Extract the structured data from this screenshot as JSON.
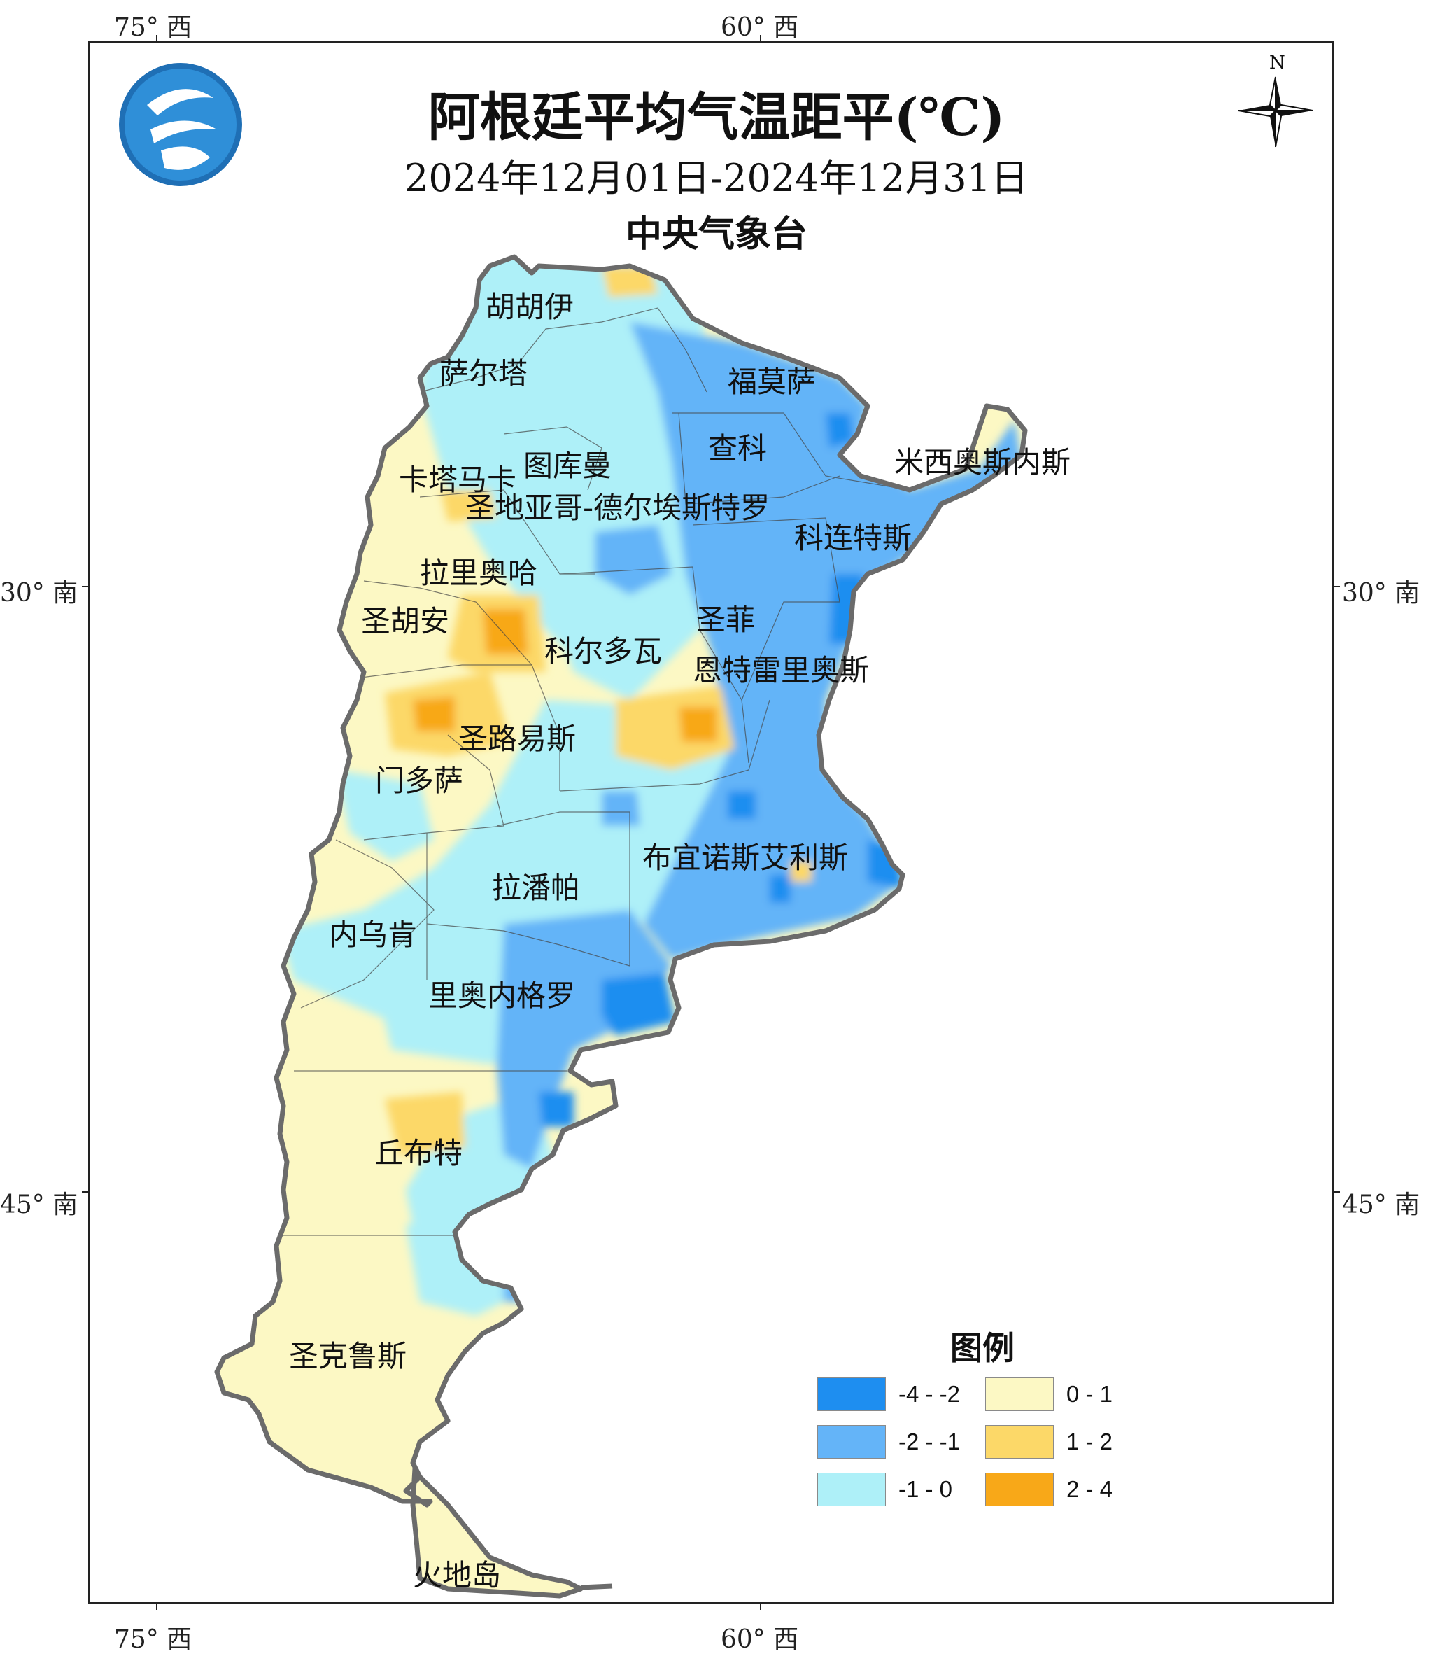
{
  "title": "阿根廷平均气温距平(℃)",
  "date_range": "2024年12月01日-2024年12月31日",
  "agency": "中央气象台",
  "north_label": "N",
  "logo_icon": "cma-logo-icon",
  "axes": {
    "top": [
      "75° 西",
      "60° 西"
    ],
    "bottom": [
      "75° 西",
      "60° 西"
    ],
    "left": [
      "30° 南",
      "45° 南"
    ],
    "right": [
      "30° 南",
      "45° 南"
    ]
  },
  "provinces": {
    "jujuy": "胡胡伊",
    "salta": "萨尔塔",
    "formosa": "福莫萨",
    "chaco": "查科",
    "misiones": "米西奥斯内斯",
    "tucuman": "图库曼",
    "catamarca": "卡塔马卡",
    "santiago": "圣地亚哥-德尔埃斯特罗",
    "corrientes": "科连特斯",
    "la_rioja": "拉里奥哈",
    "san_juan": "圣胡安",
    "cordoba": "科尔多瓦",
    "santa_fe": "圣菲",
    "entre_rios": "恩特雷里奥斯",
    "san_luis": "圣路易斯",
    "mendoza": "门多萨",
    "buenos_aires": "布宜诺斯艾利斯",
    "la_pampa": "拉潘帕",
    "neuquen": "内乌肯",
    "rio_negro": "里奥内格罗",
    "chubut": "丘布特",
    "santa_cruz": "圣克鲁斯",
    "tierra_del_fuego": "火地岛"
  },
  "legend": {
    "title": "图例",
    "items": [
      {
        "label": "-4 - -2",
        "color": "#1e8ef0"
      },
      {
        "label": "-2 - -1",
        "color": "#64b4f8"
      },
      {
        "label": "-1 - 0",
        "color": "#aef0f8"
      },
      {
        "label": "0 - 1",
        "color": "#fcf8c4"
      },
      {
        "label": "1 - 2",
        "color": "#fcd868"
      },
      {
        "label": "2 - 4",
        "color": "#f8a818"
      }
    ]
  }
}
